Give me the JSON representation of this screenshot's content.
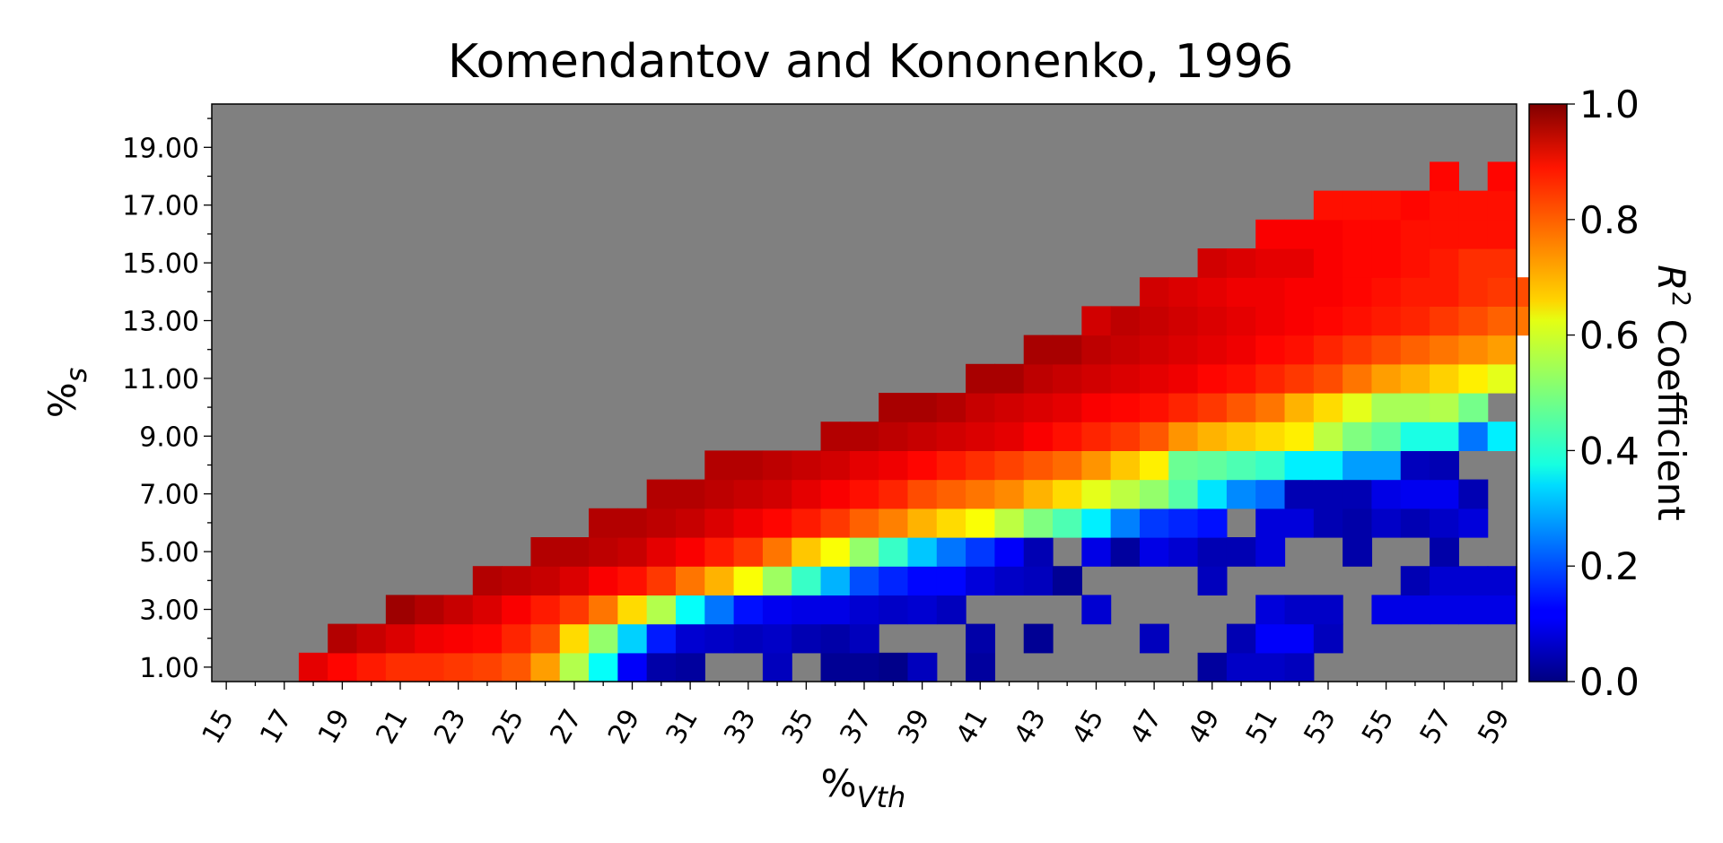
{
  "chart_data": {
    "type": "heatmap",
    "title": "Komendantov and Kononenko, 1996",
    "xlabel_main": "%",
    "xlabel_sub": "Vth",
    "ylabel_main": "%",
    "ylabel_sub": "s",
    "colorbar_label_main": "R",
    "colorbar_label_sup": "2",
    "colorbar_label_rest": " Coefficient",
    "x_start": 15,
    "x_end": 59,
    "y_start": 1,
    "y_end": 20,
    "clim": [
      0,
      1
    ],
    "colormap": "jet",
    "missing_color": "#808080",
    "x_ticks": [
      "15",
      "17",
      "19",
      "21",
      "23",
      "25",
      "27",
      "29",
      "31",
      "33",
      "35",
      "37",
      "39",
      "41",
      "43",
      "45",
      "47",
      "49",
      "51",
      "53",
      "55",
      "57",
      "59"
    ],
    "y_ticks": [
      "1.00",
      "3.00",
      "5.00",
      "7.00",
      "9.00",
      "11.00",
      "13.00",
      "15.00",
      "17.00",
      "19.00"
    ],
    "colorbar_ticks": [
      "0.0",
      "0.2",
      "0.4",
      "0.6",
      "0.8",
      "1.0"
    ],
    "rows": [
      {
        "y": 1,
        "start_x": 18,
        "values": [
          0.9,
          0.87,
          0.85,
          0.83,
          0.83,
          0.82,
          0.81,
          0.79,
          0.72,
          0.55,
          0.38,
          0.12,
          0.04,
          0.03,
          null,
          null,
          0.06,
          null,
          0.02,
          0.02,
          0.01,
          0.06,
          null,
          0.03,
          null,
          null,
          null,
          null,
          null,
          null,
          null,
          0.03,
          0.07,
          0.07,
          0.06,
          null,
          null,
          null,
          null,
          null,
          null,
          null
        ]
      },
      {
        "y": 2,
        "start_x": 19,
        "values": [
          0.95,
          0.93,
          0.91,
          0.89,
          0.88,
          0.87,
          0.84,
          0.8,
          0.66,
          0.52,
          0.33,
          0.15,
          0.08,
          0.07,
          0.06,
          0.07,
          0.05,
          0.04,
          0.06,
          null,
          null,
          null,
          0.04,
          null,
          0.02,
          null,
          null,
          null,
          0.06,
          null,
          null,
          0.05,
          0.12,
          0.12,
          0.06,
          null,
          null,
          null,
          null,
          null,
          null
        ]
      },
      {
        "y": 3,
        "start_x": 21,
        "values": [
          0.97,
          0.95,
          0.93,
          0.91,
          0.88,
          0.85,
          0.82,
          0.76,
          0.66,
          0.55,
          0.38,
          0.24,
          0.14,
          0.11,
          0.1,
          0.1,
          0.08,
          0.07,
          0.08,
          0.06,
          null,
          null,
          null,
          null,
          0.08,
          null,
          null,
          null,
          null,
          null,
          0.09,
          0.07,
          0.07,
          null,
          0.1,
          0.1,
          0.1,
          0.1,
          0.1
        ]
      },
      {
        "y": 4,
        "start_x": 24,
        "values": [
          0.95,
          0.94,
          0.93,
          0.91,
          0.88,
          0.86,
          0.82,
          0.76,
          0.7,
          0.62,
          0.53,
          0.43,
          0.3,
          0.2,
          0.16,
          0.13,
          0.13,
          0.09,
          0.07,
          0.06,
          0.02,
          null,
          null,
          null,
          null,
          0.06,
          null,
          null,
          null,
          null,
          null,
          null,
          0.05,
          0.08,
          0.08,
          0.08
        ]
      },
      {
        "y": 5,
        "start_x": 26,
        "values": [
          0.95,
          0.95,
          0.94,
          0.93,
          0.9,
          0.88,
          0.85,
          0.82,
          0.76,
          0.68,
          0.62,
          0.52,
          0.43,
          0.32,
          0.24,
          0.18,
          0.12,
          0.05,
          null,
          0.1,
          0.03,
          0.1,
          0.08,
          0.05,
          0.05,
          0.09,
          null,
          null,
          0.04,
          null,
          null,
          0.04
        ]
      },
      {
        "y": 6,
        "start_x": 28,
        "values": [
          0.95,
          0.95,
          0.94,
          0.93,
          0.91,
          0.89,
          0.87,
          0.85,
          0.82,
          0.78,
          0.75,
          0.7,
          0.66,
          0.62,
          0.56,
          0.5,
          0.45,
          0.36,
          0.25,
          0.18,
          0.16,
          0.14,
          null,
          0.09,
          0.09,
          0.05,
          0.04,
          0.07,
          0.05,
          0.07,
          0.09,
          null
        ]
      },
      {
        "y": 7,
        "start_x": 30,
        "values": [
          0.95,
          0.95,
          0.94,
          0.93,
          0.92,
          0.9,
          0.88,
          0.86,
          0.84,
          0.8,
          0.78,
          0.76,
          0.74,
          0.7,
          0.66,
          0.6,
          0.56,
          0.52,
          0.46,
          0.35,
          0.26,
          0.23,
          0.05,
          0.05,
          0.05,
          0.1,
          0.11,
          0.11,
          0.05
        ]
      },
      {
        "y": 8,
        "start_x": 32,
        "values": [
          0.95,
          0.95,
          0.94,
          0.93,
          0.92,
          0.9,
          0.89,
          0.87,
          0.85,
          0.83,
          0.81,
          0.79,
          0.77,
          0.73,
          0.68,
          0.64,
          0.48,
          0.47,
          0.45,
          0.43,
          0.36,
          0.36,
          0.28,
          0.28,
          0.06,
          0.05
        ]
      },
      {
        "y": 9,
        "start_x": 36,
        "values": [
          0.95,
          0.95,
          0.94,
          0.93,
          0.92,
          0.91,
          0.9,
          0.88,
          0.86,
          0.84,
          0.82,
          0.79,
          0.73,
          0.7,
          0.68,
          0.66,
          0.64,
          0.56,
          0.5,
          0.47,
          0.4,
          0.4,
          0.24,
          0.36
        ]
      },
      {
        "y": 10,
        "start_x": 38,
        "values": [
          0.96,
          0.96,
          0.95,
          0.93,
          0.92,
          0.91,
          0.9,
          0.88,
          0.87,
          0.86,
          0.84,
          0.82,
          0.79,
          0.76,
          0.7,
          0.66,
          0.6,
          0.54,
          0.54,
          0.55,
          0.49
        ]
      },
      {
        "y": 11,
        "start_x": 41,
        "values": [
          0.96,
          0.96,
          0.94,
          0.93,
          0.92,
          0.91,
          0.9,
          0.89,
          0.87,
          0.86,
          0.84,
          0.82,
          0.8,
          0.76,
          0.72,
          0.7,
          0.67,
          0.64,
          0.6
        ]
      },
      {
        "y": 12,
        "start_x": 43,
        "values": [
          0.96,
          0.96,
          0.94,
          0.93,
          0.92,
          0.91,
          0.9,
          0.89,
          0.87,
          0.86,
          0.84,
          0.82,
          0.8,
          0.78,
          0.76,
          0.74,
          0.72
        ]
      },
      {
        "y": 13,
        "start_x": 45,
        "values": [
          0.92,
          0.94,
          0.93,
          0.92,
          0.91,
          0.9,
          0.89,
          0.88,
          0.87,
          0.86,
          0.85,
          0.84,
          0.82,
          0.8,
          0.78,
          0.76
        ]
      },
      {
        "y": 14,
        "start_x": 47,
        "values": [
          0.92,
          0.91,
          0.9,
          0.89,
          0.89,
          0.88,
          0.88,
          0.87,
          0.86,
          0.85,
          0.85,
          0.83,
          0.82,
          0.8
        ]
      },
      {
        "y": 15,
        "start_x": 49,
        "values": [
          0.92,
          0.91,
          0.9,
          0.9,
          0.88,
          0.87,
          0.87,
          0.86,
          0.85,
          0.83,
          0.83
        ]
      },
      {
        "y": 16,
        "start_x": 51,
        "values": [
          0.88,
          0.88,
          0.88,
          0.87,
          0.87,
          0.86,
          0.86,
          0.86,
          0.86
        ]
      },
      {
        "y": 17,
        "start_x": 53,
        "values": [
          0.86,
          0.86,
          0.86,
          0.87,
          0.86,
          0.86,
          0.86
        ]
      },
      {
        "y": 18,
        "start_x": 57,
        "values": [
          0.87,
          null,
          0.87
        ]
      }
    ]
  }
}
